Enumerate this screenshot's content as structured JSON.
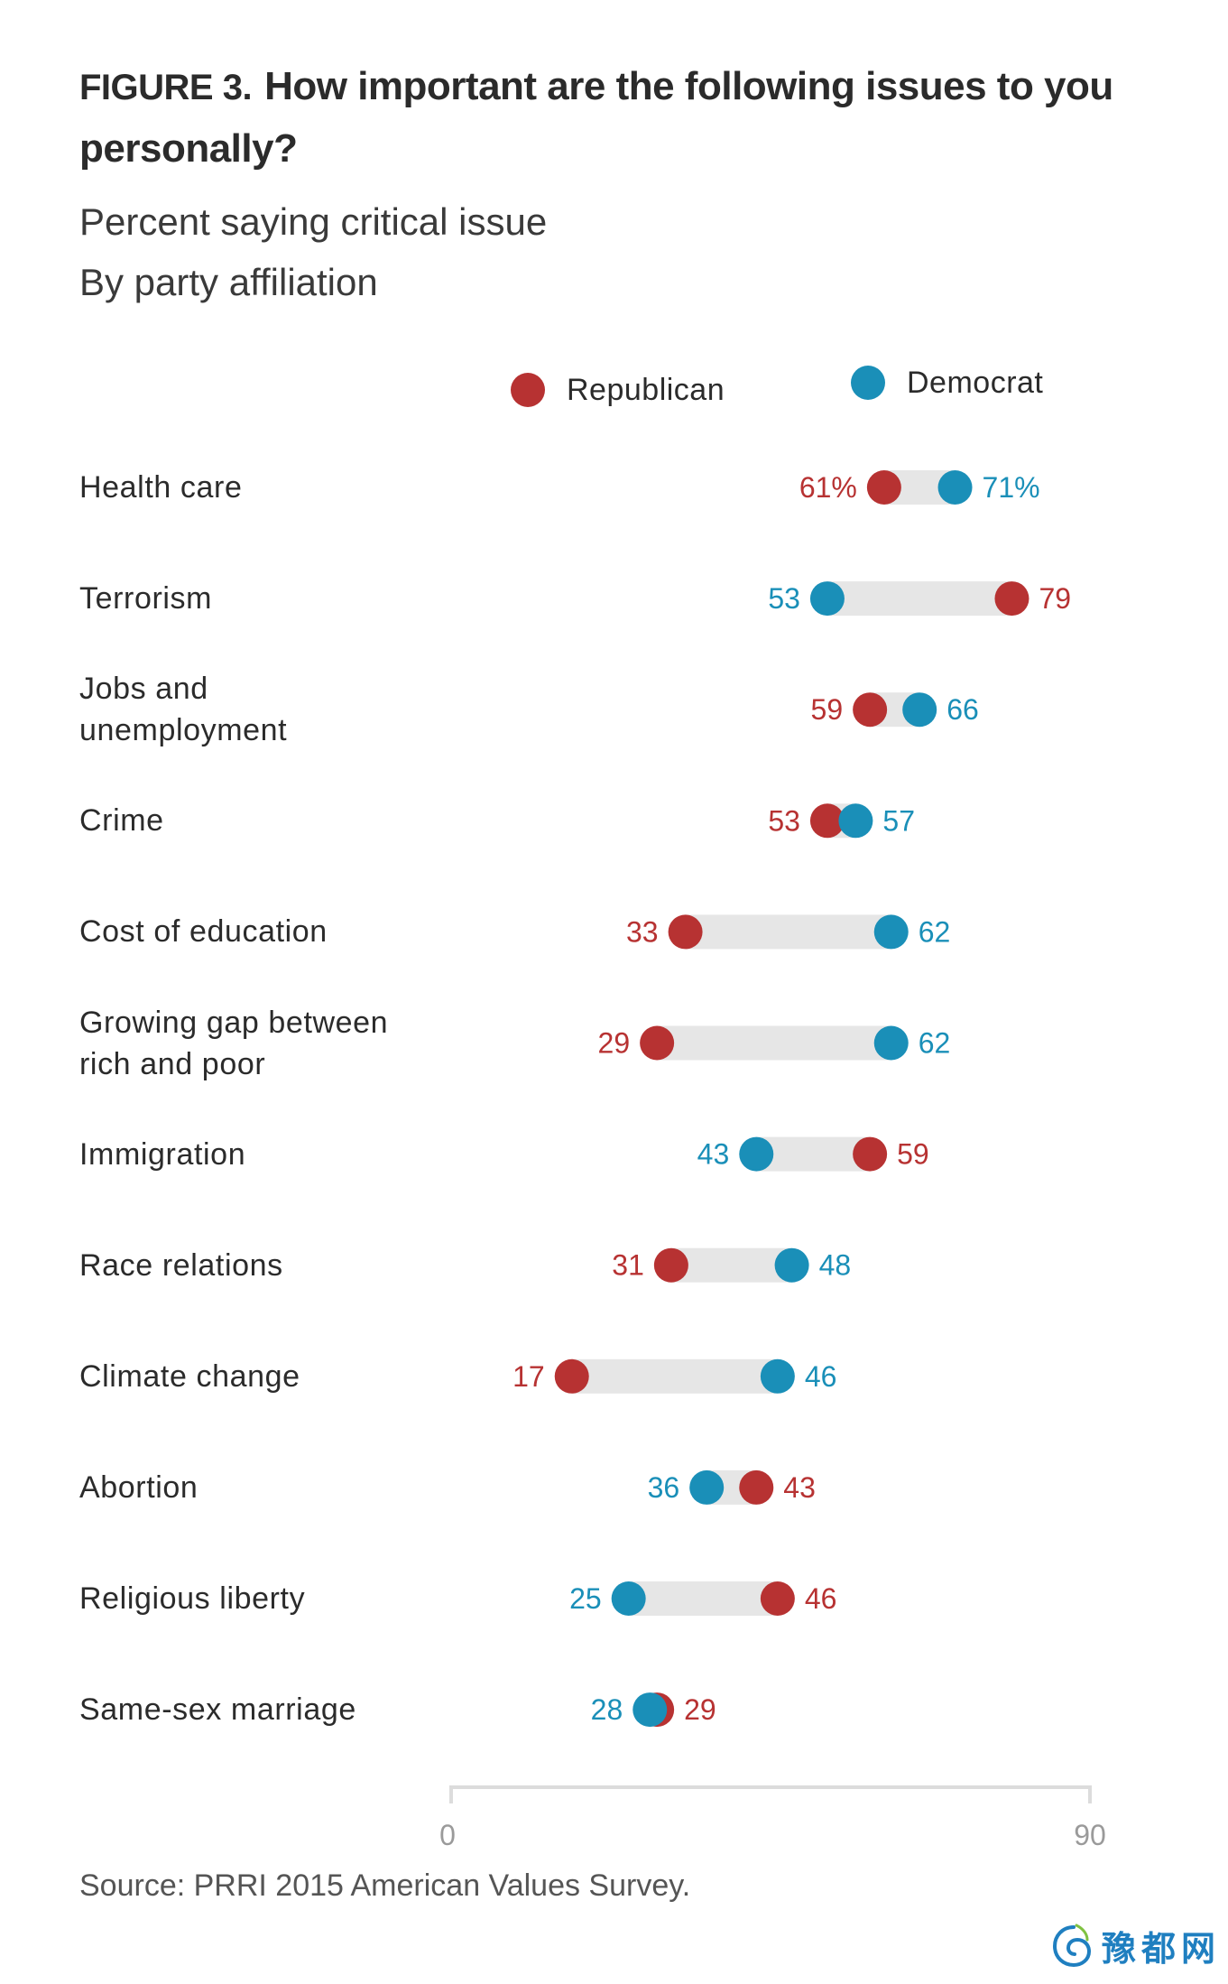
{
  "header": {
    "figure_label": "FIGURE 3.",
    "title": "How important are the following issues to you personally?",
    "subtitle_line1": "Percent saying critical issue",
    "subtitle_line2": "By party affiliation"
  },
  "colors": {
    "republican": "#b73232",
    "democrat": "#1a8fb8",
    "connector": "#e6e6e6",
    "axis": "#dcdcdc"
  },
  "footer": {
    "source": "Source: PRRI 2015 American Values Survey."
  },
  "watermark": {
    "text": "豫都网",
    "icon": "swirl-logo-icon"
  },
  "chart_data": {
    "type": "dot-plot",
    "title": "How important are the following issues to you personally?",
    "subtitle": "Percent saying critical issue, By party affiliation",
    "xlabel": "",
    "ylabel": "",
    "xlim": [
      0,
      90
    ],
    "x_ticks": [
      "0",
      "90"
    ],
    "grid": false,
    "legend": {
      "placement": "top",
      "entries": [
        {
          "name": "Republican",
          "color": "#b73232"
        },
        {
          "name": "Democrat",
          "color": "#1a8fb8"
        }
      ]
    },
    "categories": [
      "Health care",
      "Terrorism",
      "Jobs and unemployment",
      "Crime",
      "Cost of education",
      "Growing gap between rich and poor",
      "Immigration",
      "Race relations",
      "Climate change",
      "Abortion",
      "Religious liberty",
      "Same-sex marriage"
    ],
    "category_lines": [
      [
        "Health care"
      ],
      [
        "Terrorism"
      ],
      [
        "Jobs and",
        "unemployment"
      ],
      [
        "Crime"
      ],
      [
        "Cost of education"
      ],
      [
        "Growing gap between",
        "rich and poor"
      ],
      [
        "Immigration"
      ],
      [
        "Race relations"
      ],
      [
        "Climate change"
      ],
      [
        "Abortion"
      ],
      [
        "Religious liberty"
      ],
      [
        "Same-sex marriage"
      ]
    ],
    "series": [
      {
        "name": "Republican",
        "values": [
          61,
          79,
          59,
          53,
          33,
          29,
          59,
          31,
          17,
          43,
          46,
          29
        ]
      },
      {
        "name": "Democrat",
        "values": [
          71,
          53,
          66,
          57,
          62,
          62,
          43,
          48,
          46,
          36,
          25,
          28
        ]
      }
    ],
    "value_labels": {
      "Republican": [
        "61%",
        "79",
        "59",
        "53",
        "33",
        "29",
        "59",
        "31",
        "17",
        "43",
        "46",
        "29"
      ],
      "Democrat": [
        "71%",
        "53",
        "66",
        "57",
        "62",
        "62",
        "43",
        "48",
        "46",
        "36",
        "25",
        "28"
      ]
    }
  }
}
